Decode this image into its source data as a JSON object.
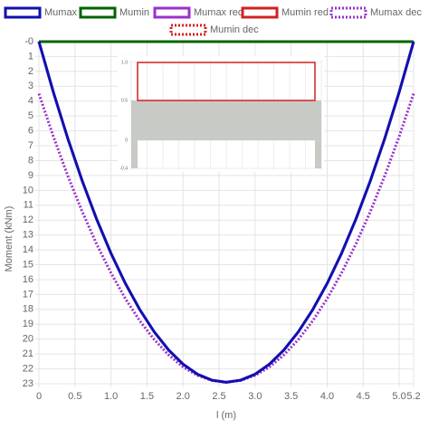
{
  "chart_data": {
    "type": "line",
    "x_label": "l (m)",
    "y_label": "Moment (kNm)",
    "x": [
      0,
      0.2,
      0.4,
      0.6,
      0.8,
      1.0,
      1.2,
      1.4,
      1.6,
      1.8,
      2.0,
      2.2,
      2.4,
      2.6,
      2.8,
      3.0,
      3.2,
      3.4,
      3.6,
      3.8,
      4.0,
      4.2,
      4.4,
      4.6,
      4.8,
      5.0,
      5.2
    ],
    "series": [
      {
        "name": "Mumax",
        "color": "#1010b0",
        "style": "solid",
        "values": [
          0,
          3.39,
          6.5,
          9.35,
          11.92,
          14.23,
          16.26,
          18.02,
          19.51,
          20.73,
          21.68,
          22.36,
          22.76,
          22.9,
          22.76,
          22.36,
          21.68,
          20.73,
          19.51,
          18.02,
          16.26,
          14.23,
          11.92,
          9.35,
          6.5,
          3.39,
          0
        ]
      },
      {
        "name": "Mumin",
        "color": "#006400",
        "style": "solid",
        "values": [
          0,
          0,
          0,
          0,
          0,
          0,
          0,
          0,
          0,
          0,
          0,
          0,
          0,
          0,
          0,
          0,
          0,
          0,
          0,
          0,
          0,
          0,
          0,
          0,
          0,
          0,
          0
        ]
      },
      {
        "name": "Mumax red",
        "color": "#9932cc",
        "style": "solid",
        "values": [
          0,
          3.39,
          6.5,
          9.35,
          11.92,
          14.23,
          16.26,
          18.02,
          19.51,
          20.73,
          21.68,
          22.36,
          22.76,
          22.9,
          22.76,
          22.36,
          21.68,
          20.73,
          19.51,
          18.02,
          16.26,
          14.23,
          11.92,
          9.35,
          6.5,
          3.39,
          0
        ]
      },
      {
        "name": "Mumin red",
        "color": "#d42020",
        "style": "solid",
        "values": [
          0,
          0,
          0,
          0,
          0,
          0,
          0,
          0,
          0,
          0,
          0,
          0,
          0,
          0,
          0,
          0,
          0,
          0,
          0,
          0,
          0,
          0,
          0,
          0,
          0,
          0,
          0
        ]
      },
      {
        "name": "Mumax dec",
        "color": "#9932cc",
        "style": "dotted",
        "values": [
          3.5,
          6.37,
          9.01,
          11.42,
          13.6,
          15.55,
          17.28,
          18.77,
          20.03,
          21.06,
          21.87,
          22.44,
          22.78,
          22.9,
          22.78,
          22.44,
          21.87,
          21.06,
          20.03,
          18.77,
          17.28,
          15.55,
          13.6,
          11.42,
          9.01,
          6.37,
          3.5
        ]
      },
      {
        "name": "Mumin dec",
        "color": "#d42020",
        "style": "dotted",
        "values": [
          0,
          0,
          0,
          0,
          0,
          0,
          0,
          0,
          0,
          0,
          0,
          0,
          0,
          0,
          0,
          0,
          0,
          0,
          0,
          0,
          0,
          0,
          0,
          0,
          0,
          0,
          0
        ]
      }
    ],
    "xlim": [
      0,
      5.2
    ],
    "xticks": [
      0,
      0.5,
      {
        "value": 1,
        "label": "1.0"
      },
      1.5,
      {
        "value": 2,
        "label": "2.0"
      },
      2.5,
      {
        "value": 3,
        "label": "3.0"
      },
      3.5,
      {
        "value": 4,
        "label": "4.0"
      },
      4.5,
      {
        "value": 5,
        "label": "5.0"
      },
      5.2
    ],
    "ylim": [
      0,
      23
    ],
    "y_reversed": true,
    "yticks": [
      {
        "value": 0,
        "label": "-0"
      },
      1,
      2,
      3,
      4,
      5,
      6,
      7,
      8,
      9,
      10,
      11,
      12,
      13,
      14,
      15,
      16,
      17,
      18,
      19,
      20,
      21,
      22,
      23
    ],
    "grid": true,
    "inset_labels": [
      "1.0",
      "0.5",
      "0",
      "-0.4"
    ]
  }
}
